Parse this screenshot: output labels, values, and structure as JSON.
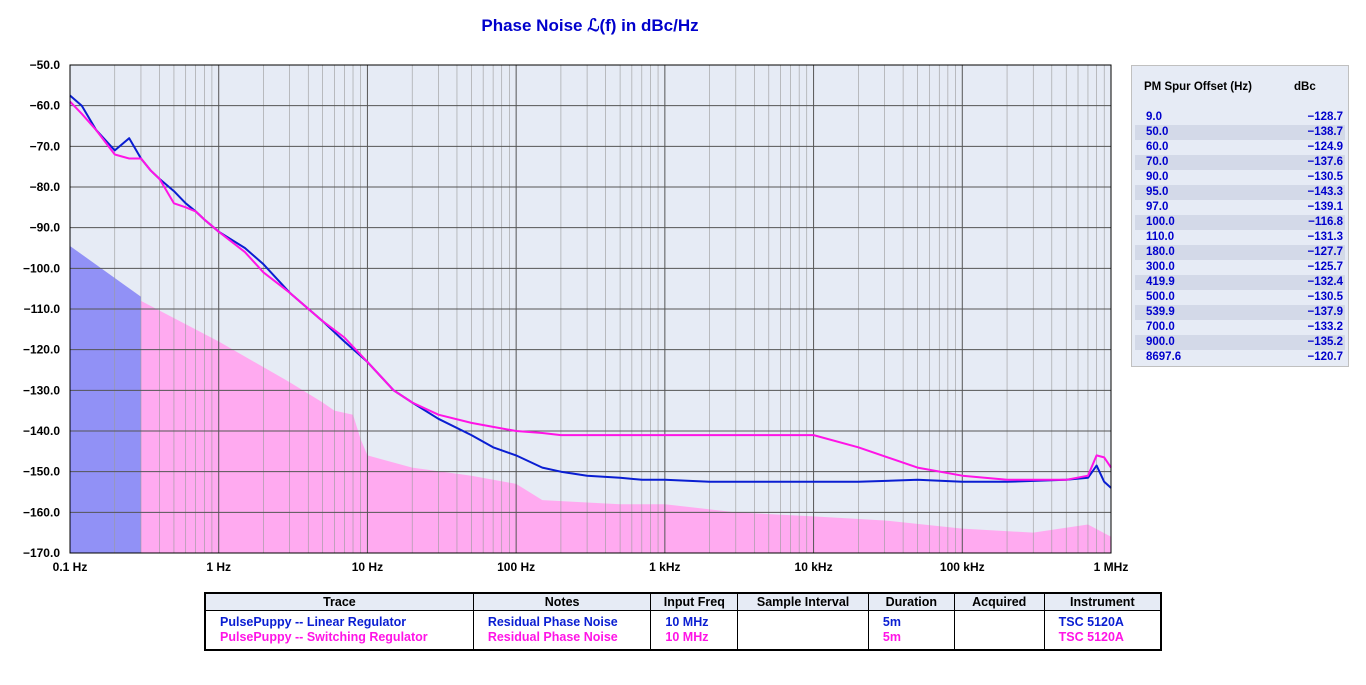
{
  "colors": {
    "linear": "#0a1ed2",
    "switching": "#ff14e6",
    "plot_bg": "#e6ebf5",
    "fill_linear": "#8c8cf5",
    "fill_switching": "#ffaaf0",
    "label": "#0000cc"
  },
  "chart_data": {
    "type": "line",
    "title": "Phase Noise ℒ(f) in dBc/Hz",
    "x_scale": "log",
    "xlim": [
      0.1,
      1000000
    ],
    "ylim": [
      -170,
      -50
    ],
    "grid": true,
    "x_ticks": [
      {
        "value": 0.1,
        "label": "0.1 Hz"
      },
      {
        "value": 1,
        "label": "1 Hz"
      },
      {
        "value": 10,
        "label": "10 Hz"
      },
      {
        "value": 100,
        "label": "100 Hz"
      },
      {
        "value": 1000,
        "label": "1 kHz"
      },
      {
        "value": 10000,
        "label": "10 kHz"
      },
      {
        "value": 100000,
        "label": "100 kHz"
      },
      {
        "value": 1000000,
        "label": "1 MHz"
      }
    ],
    "y_ticks": [
      {
        "value": -50,
        "label": "−50.0"
      },
      {
        "value": -60,
        "label": "−60.0"
      },
      {
        "value": -70,
        "label": "−70.0"
      },
      {
        "value": -80,
        "label": "−80.0"
      },
      {
        "value": -90,
        "label": "−90.0"
      },
      {
        "value": -100,
        "label": "−100.0"
      },
      {
        "value": -110,
        "label": "−110.0"
      },
      {
        "value": -120,
        "label": "−120.0"
      },
      {
        "value": -130,
        "label": "−130.0"
      },
      {
        "value": -140,
        "label": "−140.0"
      },
      {
        "value": -150,
        "label": "−150.0"
      },
      {
        "value": -160,
        "label": "−160.0"
      },
      {
        "value": -170,
        "label": "−170.0"
      }
    ],
    "series": [
      {
        "name": "PulsePuppy -- Linear Regulator",
        "color": "#0a1ed2",
        "x": [
          0.1,
          0.12,
          0.15,
          0.2,
          0.25,
          0.3,
          0.35,
          0.4,
          0.5,
          0.6,
          0.7,
          0.8,
          1,
          1.5,
          2,
          3,
          5,
          7,
          10,
          15,
          20,
          30,
          50,
          70,
          100,
          150,
          200,
          300,
          500,
          700,
          1000,
          2000,
          5000,
          10000,
          20000,
          50000,
          100000,
          200000,
          500000,
          700000,
          800000,
          900000,
          1000000
        ],
        "y": [
          -57.5,
          -60,
          -66,
          -71,
          -68,
          -73,
          -76,
          -78,
          -81,
          -84,
          -86,
          -88,
          -91,
          -95,
          -99,
          -106,
          -113,
          -118,
          -123,
          -130,
          -133,
          -137,
          -141,
          -144,
          -146,
          -149,
          -150,
          -151,
          -151.5,
          -152,
          -152,
          -152.5,
          -152.5,
          -152.5,
          -152.5,
          -152,
          -152.5,
          -152.5,
          -152,
          -151.5,
          -148.5,
          -152.5,
          -154
        ]
      },
      {
        "name": "PulsePuppy -- Switching  Regulator",
        "color": "#ff14e6",
        "x": [
          0.1,
          0.12,
          0.15,
          0.2,
          0.25,
          0.3,
          0.35,
          0.4,
          0.5,
          0.6,
          0.7,
          0.8,
          1,
          1.5,
          2,
          3,
          5,
          7,
          10,
          15,
          20,
          30,
          50,
          70,
          100,
          150,
          200,
          300,
          500,
          700,
          1000,
          2000,
          5000,
          10000,
          20000,
          50000,
          100000,
          200000,
          500000,
          700000,
          800000,
          900000,
          1000000
        ],
        "y": [
          -59,
          -62,
          -66,
          -72,
          -73,
          -73,
          -76,
          -78,
          -84,
          -85,
          -86,
          -88,
          -91,
          -96,
          -101,
          -106,
          -113,
          -117,
          -123,
          -130,
          -133,
          -136,
          -138,
          -139,
          -140,
          -140.5,
          -141,
          -141,
          -141,
          -141,
          -141,
          -141,
          -141,
          -141,
          -144,
          -149,
          -151,
          -152,
          -152,
          -151,
          -146,
          -146.5,
          -149
        ]
      }
    ],
    "spur_table": {
      "headers": [
        "PM Spur Offset (Hz)",
        "dBc"
      ],
      "rows": [
        [
          "9.0",
          "−128.7"
        ],
        [
          "50.0",
          "−138.7"
        ],
        [
          "60.0",
          "−124.9"
        ],
        [
          "70.0",
          "−137.6"
        ],
        [
          "90.0",
          "−130.5"
        ],
        [
          "95.0",
          "−143.3"
        ],
        [
          "97.0",
          "−139.1"
        ],
        [
          "100.0",
          "−116.8"
        ],
        [
          "110.0",
          "−131.3"
        ],
        [
          "180.0",
          "−127.7"
        ],
        [
          "300.0",
          "−125.7"
        ],
        [
          "419.9",
          "−132.4"
        ],
        [
          "500.0",
          "−130.5"
        ],
        [
          "539.9",
          "−137.9"
        ],
        [
          "700.0",
          "−133.2"
        ],
        [
          "900.0",
          "−135.2"
        ],
        [
          "8697.6",
          "−120.7"
        ]
      ]
    }
  },
  "legend_table": {
    "headers": [
      "Trace",
      "Notes",
      "Input Freq",
      "Sample Interval",
      "Duration",
      "Acquired",
      "Instrument"
    ],
    "rows": [
      {
        "trace": "PulsePuppy -- Linear Regulator",
        "notes": "Residual Phase Noise",
        "input_freq": "10 MHz",
        "sample_interval": "",
        "duration": "5m",
        "acquired": "",
        "instrument": "TSC 5120A"
      },
      {
        "trace": "PulsePuppy -- Switching  Regulator",
        "notes": "Residual Phase Noise",
        "input_freq": "10 MHz",
        "sample_interval": "",
        "duration": "5m",
        "acquired": "",
        "instrument": "TSC 5120A"
      }
    ]
  }
}
